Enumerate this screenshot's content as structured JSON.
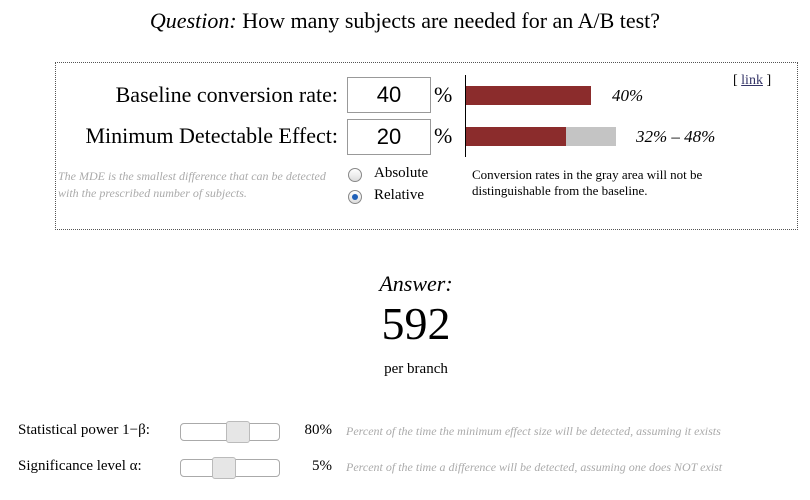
{
  "header": {
    "question_label": "Question:",
    "question_text": "How many subjects are needed for an A/B test?"
  },
  "form": {
    "link": {
      "open": "[",
      "text": "link",
      "close": "]"
    },
    "baseline": {
      "label": "Baseline conversion rate:",
      "input": 40,
      "unit": "%",
      "bar_label": "40%"
    },
    "mde": {
      "label": "Minimum Detectable Effect:",
      "input": 20,
      "unit": "%",
      "range_low": 32,
      "range_high": 48,
      "range_label": "32% – 48%"
    },
    "mde_note": "The MDE is the smallest difference that can be detected with the prescribed number of subjects.",
    "options": [
      {
        "label": "Absolute",
        "selected": false
      },
      {
        "label": "Relative",
        "selected": true
      }
    ],
    "gray_note": "Conversion rates in the gray area will not be distinguishable from the baseline."
  },
  "answer": {
    "label": "Answer:",
    "value": 592,
    "unit": "per branch"
  },
  "parameters": [
    {
      "label": "Statistical power 1−β:",
      "value_label": "80%",
      "note": "Percent of the time the minimum effect size will be detected, assuming it exists"
    },
    {
      "label": "Significance level α:",
      "value_label": "5%",
      "note": "Percent of the time a difference will be detected, assuming one does NOT exist"
    }
  ]
}
